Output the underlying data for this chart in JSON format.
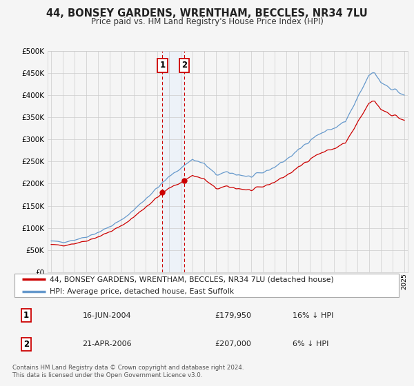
{
  "title": "44, BONSEY GARDENS, WRENTHAM, BECCLES, NR34 7LU",
  "subtitle": "Price paid vs. HM Land Registry's House Price Index (HPI)",
  "legend_entry1": "44, BONSEY GARDENS, WRENTHAM, BECCLES, NR34 7LU (detached house)",
  "legend_entry2": "HPI: Average price, detached house, East Suffolk",
  "transaction1_date": "16-JUN-2004",
  "transaction1_price": "£179,950",
  "transaction1_hpi": "16% ↓ HPI",
  "transaction2_date": "21-APR-2006",
  "transaction2_price": "£207,000",
  "transaction2_hpi": "6% ↓ HPI",
  "footnote": "Contains HM Land Registry data © Crown copyright and database right 2024.\nThis data is licensed under the Open Government Licence v3.0.",
  "red_color": "#cc0000",
  "blue_color": "#6699cc",
  "blue_span_color": "#ddeeff",
  "grid_color": "#cccccc",
  "background_color": "#f5f5f5",
  "ylim_min": 0,
  "ylim_max": 500000,
  "yticks": [
    0,
    50000,
    100000,
    150000,
    200000,
    250000,
    300000,
    350000,
    400000,
    450000,
    500000
  ],
  "transaction1_x": 2004.46,
  "transaction1_y": 179950,
  "transaction2_x": 2006.31,
  "transaction2_y": 207000,
  "xlim_min": 1994.7,
  "xlim_max": 2025.3
}
